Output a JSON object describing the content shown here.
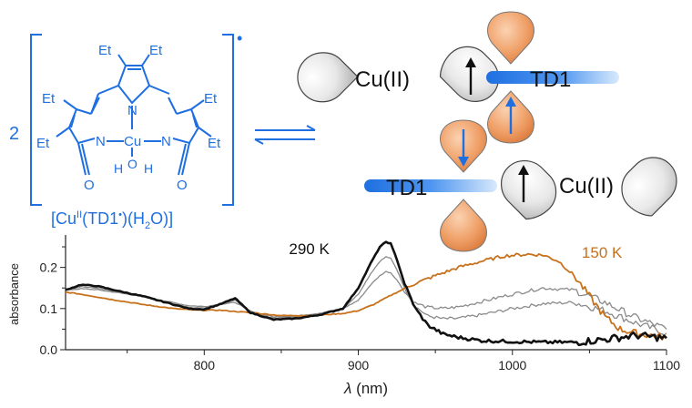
{
  "colors": {
    "molecule_blue": "#1f6fe0",
    "orbital_orange": "#e8935a",
    "orbital_grey": "#d8d8d8",
    "trace_black": "#111111",
    "trace_orange": "#c8711c",
    "trace_grey": "#8a8a8a"
  },
  "scheme": {
    "coefficient": "2",
    "radical_dot": "•",
    "ethyl": "Et",
    "n_atom": "N",
    "cu_atom": "Cu",
    "o_atom": "O",
    "h_atom": "H",
    "formula_prefix": "[Cu",
    "formula_ox": "II",
    "formula_mid": "(TD1",
    "formula_suffix": ")(H",
    "formula_sub": "2",
    "formula_end": "O)]"
  },
  "orbital_diagram": {
    "cu_label": "Cu(II)",
    "ligand_label": "TD1",
    "spin_up_icon": "spin-up-arrow-icon",
    "spin_down_icon": "spin-down-arrow-icon"
  },
  "chart_data": {
    "type": "line",
    "xlabel_symbol": "λ",
    "xlabel_unit": " (nm)",
    "ylabel": "absorbance",
    "xlim": [
      710,
      1100
    ],
    "ylim": [
      0,
      0.27
    ],
    "x_ticks": [
      800,
      900,
      1000,
      1100
    ],
    "y_ticks": [
      0.0,
      0.1,
      0.2
    ],
    "y_tick_labels": [
      "0.0",
      "0.1",
      "0.2"
    ],
    "series": [
      {
        "name": "290 K",
        "color": "#111111",
        "width": 2.6,
        "x": [
          710,
          720,
          730,
          745,
          760,
          775,
          790,
          800,
          810,
          820,
          830,
          845,
          860,
          875,
          890,
          900,
          908,
          914,
          918,
          921,
          925,
          930,
          937,
          945,
          955,
          965,
          980,
          1000,
          1020,
          1040,
          1060,
          1080,
          1100
        ],
        "y": [
          0.145,
          0.158,
          0.155,
          0.142,
          0.13,
          0.115,
          0.1,
          0.098,
          0.11,
          0.125,
          0.09,
          0.073,
          0.076,
          0.085,
          0.1,
          0.15,
          0.21,
          0.25,
          0.262,
          0.258,
          0.22,
          0.16,
          0.1,
          0.06,
          0.038,
          0.03,
          0.022,
          0.02,
          0.018,
          0.018,
          0.025,
          0.035,
          0.028
        ]
      },
      {
        "name": "",
        "color": "#8a8a8a",
        "width": 1.3,
        "x": [
          710,
          720,
          730,
          745,
          760,
          775,
          790,
          800,
          810,
          820,
          830,
          845,
          860,
          875,
          890,
          900,
          908,
          914,
          918,
          921,
          925,
          930,
          937,
          945,
          955,
          965,
          980,
          1000,
          1020,
          1040,
          1060,
          1080,
          1100
        ],
        "y": [
          0.145,
          0.153,
          0.15,
          0.14,
          0.13,
          0.116,
          0.103,
          0.101,
          0.11,
          0.12,
          0.092,
          0.077,
          0.079,
          0.087,
          0.1,
          0.135,
          0.185,
          0.215,
          0.226,
          0.222,
          0.195,
          0.15,
          0.105,
          0.082,
          0.075,
          0.076,
          0.085,
          0.1,
          0.112,
          0.115,
          0.095,
          0.065,
          0.04
        ]
      },
      {
        "name": "",
        "color": "#8a8a8a",
        "width": 1.3,
        "x": [
          710,
          720,
          730,
          745,
          760,
          775,
          790,
          800,
          810,
          820,
          830,
          845,
          860,
          875,
          890,
          900,
          908,
          914,
          918,
          921,
          925,
          930,
          937,
          945,
          955,
          965,
          980,
          1000,
          1020,
          1040,
          1060,
          1080,
          1100
        ],
        "y": [
          0.145,
          0.148,
          0.146,
          0.138,
          0.13,
          0.118,
          0.107,
          0.105,
          0.11,
          0.115,
          0.094,
          0.08,
          0.082,
          0.089,
          0.1,
          0.12,
          0.158,
          0.18,
          0.19,
          0.187,
          0.17,
          0.14,
          0.113,
          0.103,
          0.1,
          0.104,
          0.117,
          0.135,
          0.15,
          0.145,
          0.115,
          0.078,
          0.05
        ]
      },
      {
        "name": "150 K",
        "color": "#c8711c",
        "width": 1.8,
        "x": [
          710,
          720,
          740,
          760,
          780,
          795,
          810,
          830,
          850,
          870,
          890,
          900,
          910,
          920,
          935,
          950,
          965,
          980,
          995,
          1010,
          1020,
          1030,
          1040,
          1050,
          1060,
          1070,
          1080,
          1090,
          1100
        ],
        "y": [
          0.14,
          0.135,
          0.122,
          0.11,
          0.1,
          0.096,
          0.096,
          0.09,
          0.083,
          0.083,
          0.088,
          0.095,
          0.11,
          0.13,
          0.158,
          0.18,
          0.2,
          0.215,
          0.228,
          0.232,
          0.23,
          0.215,
          0.18,
          0.13,
          0.08,
          0.05,
          0.04,
          0.035,
          0.03
        ]
      }
    ]
  }
}
